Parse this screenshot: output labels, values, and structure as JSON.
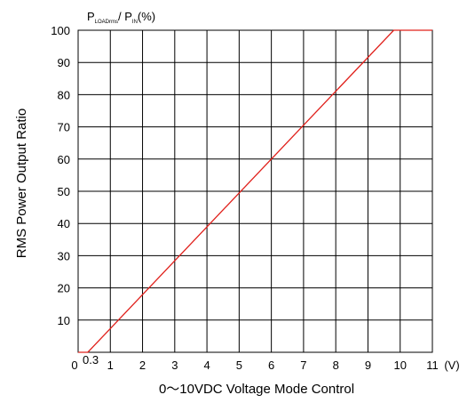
{
  "chart_data": {
    "type": "line",
    "title": "",
    "xlabel": "0～10VDC Voltage Mode Control",
    "x_unit": "(V)",
    "ylabel": "RMS Power Output Ratio",
    "ylabel_top": {
      "p1": "P",
      "sub1": "LOADrms",
      "slash": "/ P",
      "sub2": "IN",
      "unit": "(%)"
    },
    "xlim": [
      0,
      11
    ],
    "ylim": [
      0,
      100
    ],
    "x_ticks": [
      0,
      1,
      2,
      3,
      4,
      5,
      6,
      7,
      8,
      9,
      10,
      11
    ],
    "x_tick_labels": [
      "0",
      "1",
      "2",
      "3",
      "4",
      "5",
      "6",
      "7",
      "8",
      "9",
      "10",
      "11"
    ],
    "x_extra_tick_label": "0.3",
    "x_extra_tick_value": 0.3,
    "y_ticks": [
      10,
      20,
      30,
      40,
      50,
      60,
      70,
      80,
      90,
      100
    ],
    "y_tick_labels": [
      "10",
      "20",
      "30",
      "40",
      "50",
      "60",
      "70",
      "80",
      "90",
      "100"
    ],
    "grid": true,
    "series": [
      {
        "color": "#e0201b",
        "x": [
          0,
          0.3,
          9.8,
          11
        ],
        "y": [
          0,
          0,
          100,
          100
        ]
      }
    ]
  }
}
